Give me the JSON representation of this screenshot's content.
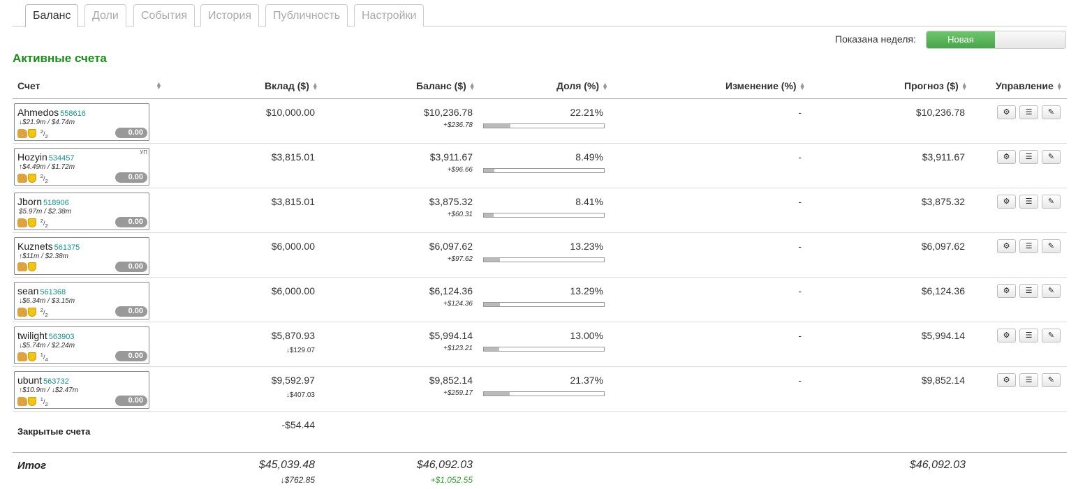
{
  "tabs": [
    {
      "label": "Баланс",
      "active": true
    },
    {
      "label": "Доли",
      "active": false
    },
    {
      "label": "События",
      "active": false
    },
    {
      "label": "История",
      "active": false
    },
    {
      "label": "Публичность",
      "active": false
    },
    {
      "label": "Настройки",
      "active": false
    }
  ],
  "week": {
    "label": "Показана неделя:",
    "toggle_on": "Новая"
  },
  "section_title": "Активные счета",
  "columns": {
    "account": "Счет",
    "deposit": "Вклад ($)",
    "balance": "Баланс ($)",
    "share": "Доля (%)",
    "change": "Изменение (%)",
    "forecast": "Прогноз ($)",
    "manage": "Управление"
  },
  "accounts": [
    {
      "name": "Ahmedos",
      "id": "558616",
      "stats": "↓$21.9m / $4.74m",
      "ratio_num": "2",
      "ratio_den": "2",
      "badge": "0.00",
      "flag": "",
      "deposit": "$10,000.00",
      "deposit_sub": "",
      "balance": "$10,236.78",
      "balance_sub": "+$236.78",
      "share": "22.21%",
      "share_fraction": 0.2221,
      "change": "-",
      "forecast": "$10,236.78"
    },
    {
      "name": "Hozyin",
      "id": "534457",
      "stats": "↑$4.49m / $1.72m",
      "ratio_num": "2",
      "ratio_den": "2",
      "badge": "0.00",
      "flag": "УП",
      "deposit": "$3,815.01",
      "deposit_sub": "",
      "balance": "$3,911.67",
      "balance_sub": "+$96.66",
      "share": "8.49%",
      "share_fraction": 0.0849,
      "change": "-",
      "forecast": "$3,911.67"
    },
    {
      "name": "Jborn",
      "id": "518906",
      "stats": "$5.97m / $2.38m",
      "ratio_num": "2",
      "ratio_den": "2",
      "badge": "0.00",
      "flag": "",
      "deposit": "$3,815.01",
      "deposit_sub": "",
      "balance": "$3,875.32",
      "balance_sub": "+$60.31",
      "share": "8.41%",
      "share_fraction": 0.0841,
      "change": "-",
      "forecast": "$3,875.32"
    },
    {
      "name": "Kuznets",
      "id": "561375",
      "stats": "↑$11m / $2.38m",
      "ratio_num": "",
      "ratio_den": "",
      "badge": "0.00",
      "flag": "",
      "deposit": "$6,000.00",
      "deposit_sub": "",
      "balance": "$6,097.62",
      "balance_sub": "+$97.62",
      "share": "13.23%",
      "share_fraction": 0.1323,
      "change": "-",
      "forecast": "$6,097.62"
    },
    {
      "name": "sean",
      "id": "561368",
      "stats": "↓$6.34m / $3.15m",
      "ratio_num": "2",
      "ratio_den": "2",
      "badge": "0.00",
      "flag": "",
      "deposit": "$6,000.00",
      "deposit_sub": "",
      "balance": "$6,124.36",
      "balance_sub": "+$124.36",
      "share": "13.29%",
      "share_fraction": 0.1329,
      "change": "-",
      "forecast": "$6,124.36"
    },
    {
      "name": "twilight",
      "id": "563903",
      "stats": "↓$5.74m / $2.24m",
      "ratio_num": "1",
      "ratio_den": "4",
      "badge": "0.00",
      "flag": "",
      "deposit": "$5,870.93",
      "deposit_sub": "↓$129.07",
      "balance": "$5,994.14",
      "balance_sub": "+$123.21",
      "share": "13.00%",
      "share_fraction": 0.13,
      "change": "-",
      "forecast": "$5,994.14"
    },
    {
      "name": "ubunt",
      "id": "563732",
      "stats": "↑$10.9m / ↓$2.47m",
      "ratio_num": "1",
      "ratio_den": "2",
      "badge": "0.00",
      "flag": "",
      "deposit": "$9,592.97",
      "deposit_sub": "↓$407.03",
      "balance": "$9,852.14",
      "balance_sub": "+$259.17",
      "share": "21.37%",
      "share_fraction": 0.2137,
      "change": "-",
      "forecast": "$9,852.14"
    }
  ],
  "closed": {
    "label": "Закрытые счета",
    "deposit": "-$54.44"
  },
  "total": {
    "label": "Итог",
    "deposit": "$45,039.48",
    "deposit_sub": "↓$762.85",
    "balance": "$46,092.03",
    "balance_sub": "+$1,052.55",
    "forecast": "$46,092.03"
  },
  "icons": {
    "settings": "gear-icon",
    "list": "list-icon",
    "edit": "pencil-icon",
    "thumb": "thumbs-up-icon",
    "shield": "shield-icon"
  },
  "colors": {
    "accent_green": "#1f8a1f",
    "toggle_green": "#4aa54a",
    "positive": "#3a9a3a",
    "id_teal": "#1a8c8c"
  }
}
